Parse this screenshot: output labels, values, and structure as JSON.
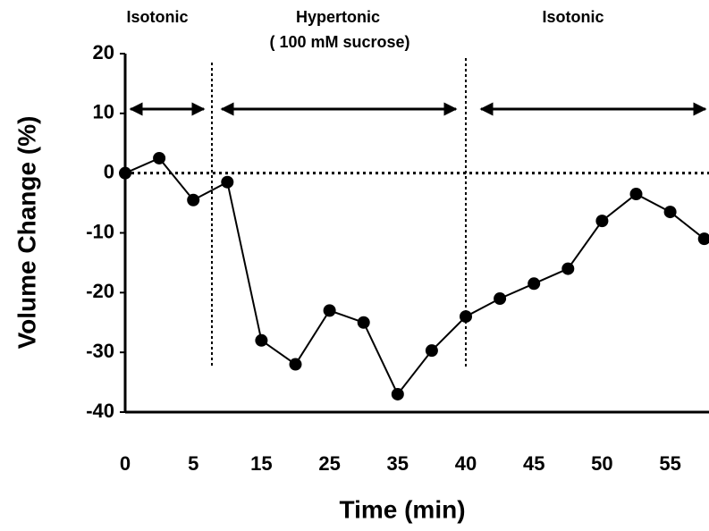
{
  "chart_data": {
    "type": "line",
    "x_label": "Time (min)",
    "y_label": "Volume Change (%)",
    "annotations": [
      "Isotonic",
      "Hypertonic",
      "( 100 mM sucrose)",
      "Isotonic"
    ],
    "categories": [
      "0",
      null,
      "5",
      null,
      "15",
      null,
      "25",
      null,
      "35",
      null,
      "40",
      null,
      "45",
      null,
      "50",
      null,
      "55",
      null
    ],
    "series": [
      {
        "name": "Volume change",
        "color": "#000000",
        "values": [
          0,
          2.5,
          -4.5,
          -1.5,
          -28,
          -32,
          -23,
          -25,
          -37,
          -29.7,
          -24,
          -21,
          -18.5,
          -16,
          -8,
          -3.5,
          -6.5,
          -11
        ]
      }
    ],
    "ylim": [
      -40,
      20
    ],
    "yticks": [
      20,
      10,
      0,
      -10,
      -20,
      -30,
      -40
    ],
    "grid": false
  }
}
